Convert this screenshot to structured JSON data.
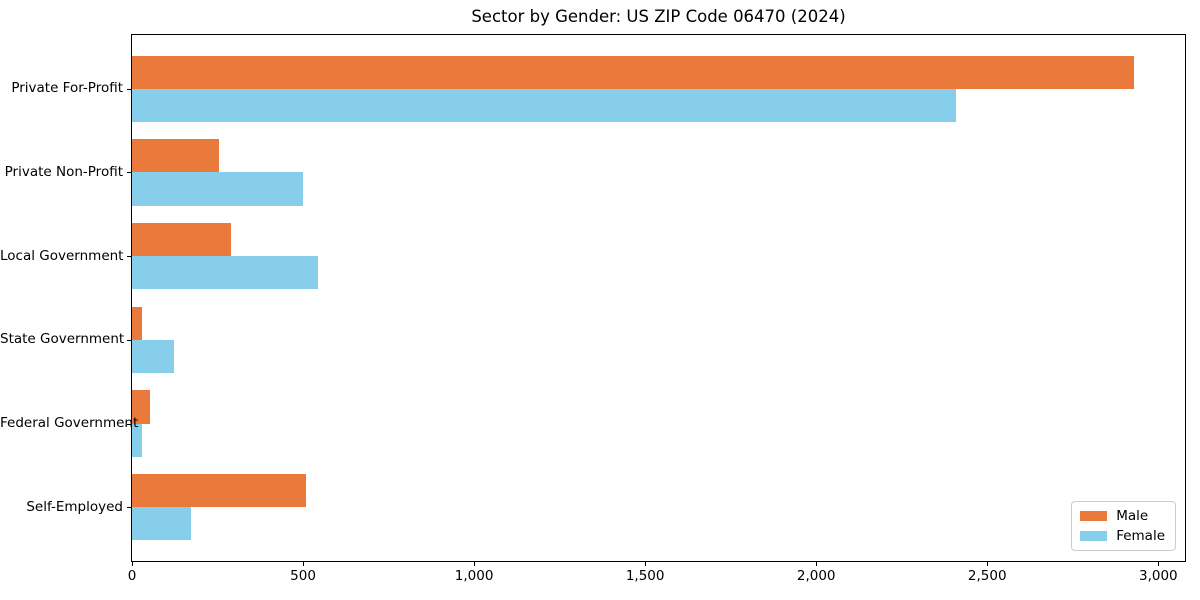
{
  "chart_data": {
    "type": "bar",
    "orientation": "horizontal",
    "title": "Sector by Gender: US ZIP Code 06470 (2024)",
    "categories": [
      "Private For-Profit",
      "Private Non-Profit",
      "Local Government",
      "State Government",
      "Federal Government",
      "Self-Employed"
    ],
    "series": [
      {
        "name": "Male",
        "color": "#EA7A3C",
        "values": [
          2930,
          255,
          290,
          30,
          53,
          510
        ]
      },
      {
        "name": "Female",
        "color": "#87CEEB",
        "values": [
          2410,
          500,
          545,
          123,
          28,
          172
        ]
      }
    ],
    "xlabel": "",
    "ylabel": "",
    "xlim": [
      0,
      3078
    ],
    "x_ticks": [
      0,
      500,
      1000,
      1500,
      2000,
      2500,
      3000
    ],
    "x_tick_labels": [
      "0",
      "500",
      "1,000",
      "1,500",
      "2,000",
      "2,500",
      "3,000"
    ],
    "grid": false,
    "legend_position": "lower right"
  },
  "style": {
    "background": "#ffffff",
    "spine_color": "#000000",
    "text_color": "#000000",
    "legend_border_color": "#cccccc"
  }
}
